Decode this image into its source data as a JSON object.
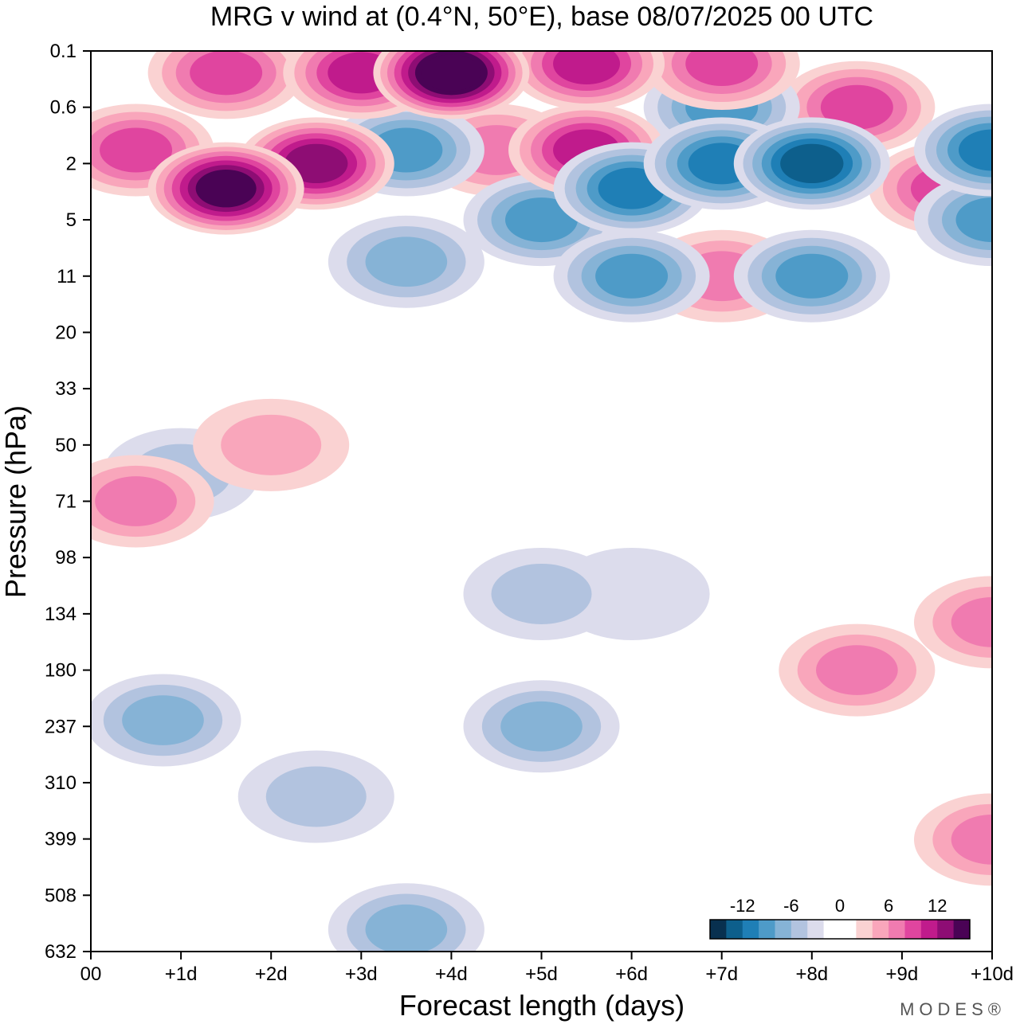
{
  "chart_data": {
    "type": "heatmap",
    "title": "MRG v wind at (0.4°N, 50°E),  base 08/07/2025  00 UTC",
    "xlabel": "Forecast length (days)",
    "ylabel": "Pressure (hPa)",
    "x_ticks": [
      "00",
      "+1d",
      "+2d",
      "+3d",
      "+4d",
      "+5d",
      "+6d",
      "+7d",
      "+8d",
      "+9d",
      "+10d"
    ],
    "x_range_days": [
      0,
      10
    ],
    "y_ticks": [
      "0.1",
      "0.6",
      "2",
      "5",
      "11",
      "20",
      "33",
      "50",
      "71",
      "98",
      "134",
      "180",
      "237",
      "310",
      "399",
      "508",
      "632"
    ],
    "colorbar": {
      "labels": [
        "-12",
        "-6",
        "0",
        "6",
        "12"
      ],
      "levels": [
        -16,
        -14,
        -12,
        -10,
        -8,
        -6,
        -4,
        -2,
        0,
        2,
        4,
        6,
        8,
        10,
        12,
        14,
        16
      ],
      "colors": [
        "#08304f",
        "#0d5f8c",
        "#1f7fb6",
        "#4e9bc8",
        "#86b3d6",
        "#b2c3df",
        "#dcdcec",
        "#ffffff",
        "#ffffff",
        "#fad2d2",
        "#f9a6bb",
        "#f07bb0",
        "#e0459f",
        "#c01b8c",
        "#8e0d74",
        "#4a0355"
      ]
    },
    "contour_blobs": [
      {
        "x": 4.0,
        "p": 0.2,
        "v": 16
      },
      {
        "x": 3.0,
        "p": 0.2,
        "v": 11
      },
      {
        "x": 5.5,
        "p": 0.15,
        "v": 11
      },
      {
        "x": 1.5,
        "p": 0.2,
        "v": 9
      },
      {
        "x": 7.0,
        "p": 0.15,
        "v": 9
      },
      {
        "x": 1.5,
        "p": 3,
        "v": 14
      },
      {
        "x": 2.5,
        "p": 2,
        "v": 12
      },
      {
        "x": 0.5,
        "p": 1.5,
        "v": 8
      },
      {
        "x": 4.5,
        "p": 1.5,
        "v": 7
      },
      {
        "x": 5.5,
        "p": 1.5,
        "v": 10
      },
      {
        "x": 8.5,
        "p": 0.6,
        "v": 8
      },
      {
        "x": 9.5,
        "p": 3,
        "v": 8
      },
      {
        "x": 3.5,
        "p": 1.5,
        "v": -8
      },
      {
        "x": 5.0,
        "p": 5,
        "v": -9
      },
      {
        "x": 6.0,
        "p": 3,
        "v": -10
      },
      {
        "x": 7.0,
        "p": 2,
        "v": -11
      },
      {
        "x": 8.0,
        "p": 2,
        "v": -12
      },
      {
        "x": 7.0,
        "p": 0.6,
        "v": -8
      },
      {
        "x": 10.0,
        "p": 1.5,
        "v": -10
      },
      {
        "x": 10.0,
        "p": 5,
        "v": -8
      },
      {
        "x": 3.5,
        "p": 9,
        "v": -7
      },
      {
        "x": 6.0,
        "p": 11,
        "v": -9
      },
      {
        "x": 8.0,
        "p": 11,
        "v": -8
      },
      {
        "x": 7.0,
        "p": 11,
        "v": 6
      },
      {
        "x": 0.5,
        "p": 71,
        "v": 7
      },
      {
        "x": 2.0,
        "p": 50,
        "v": 5
      },
      {
        "x": 8.5,
        "p": 180,
        "v": 6
      },
      {
        "x": 10.0,
        "p": 140,
        "v": 7
      },
      {
        "x": 10.0,
        "p": 400,
        "v": 6
      },
      {
        "x": 1.0,
        "p": 60,
        "v": -4
      },
      {
        "x": 0.8,
        "p": 230,
        "v": -7
      },
      {
        "x": 5.0,
        "p": 237,
        "v": -7
      },
      {
        "x": 5.0,
        "p": 120,
        "v": -5
      },
      {
        "x": 3.5,
        "p": 580,
        "v": -7
      },
      {
        "x": 2.5,
        "p": 330,
        "v": -4
      },
      {
        "x": 6.0,
        "p": 120,
        "v": -3
      }
    ]
  },
  "branding": {
    "logo_text": "MODES®"
  }
}
